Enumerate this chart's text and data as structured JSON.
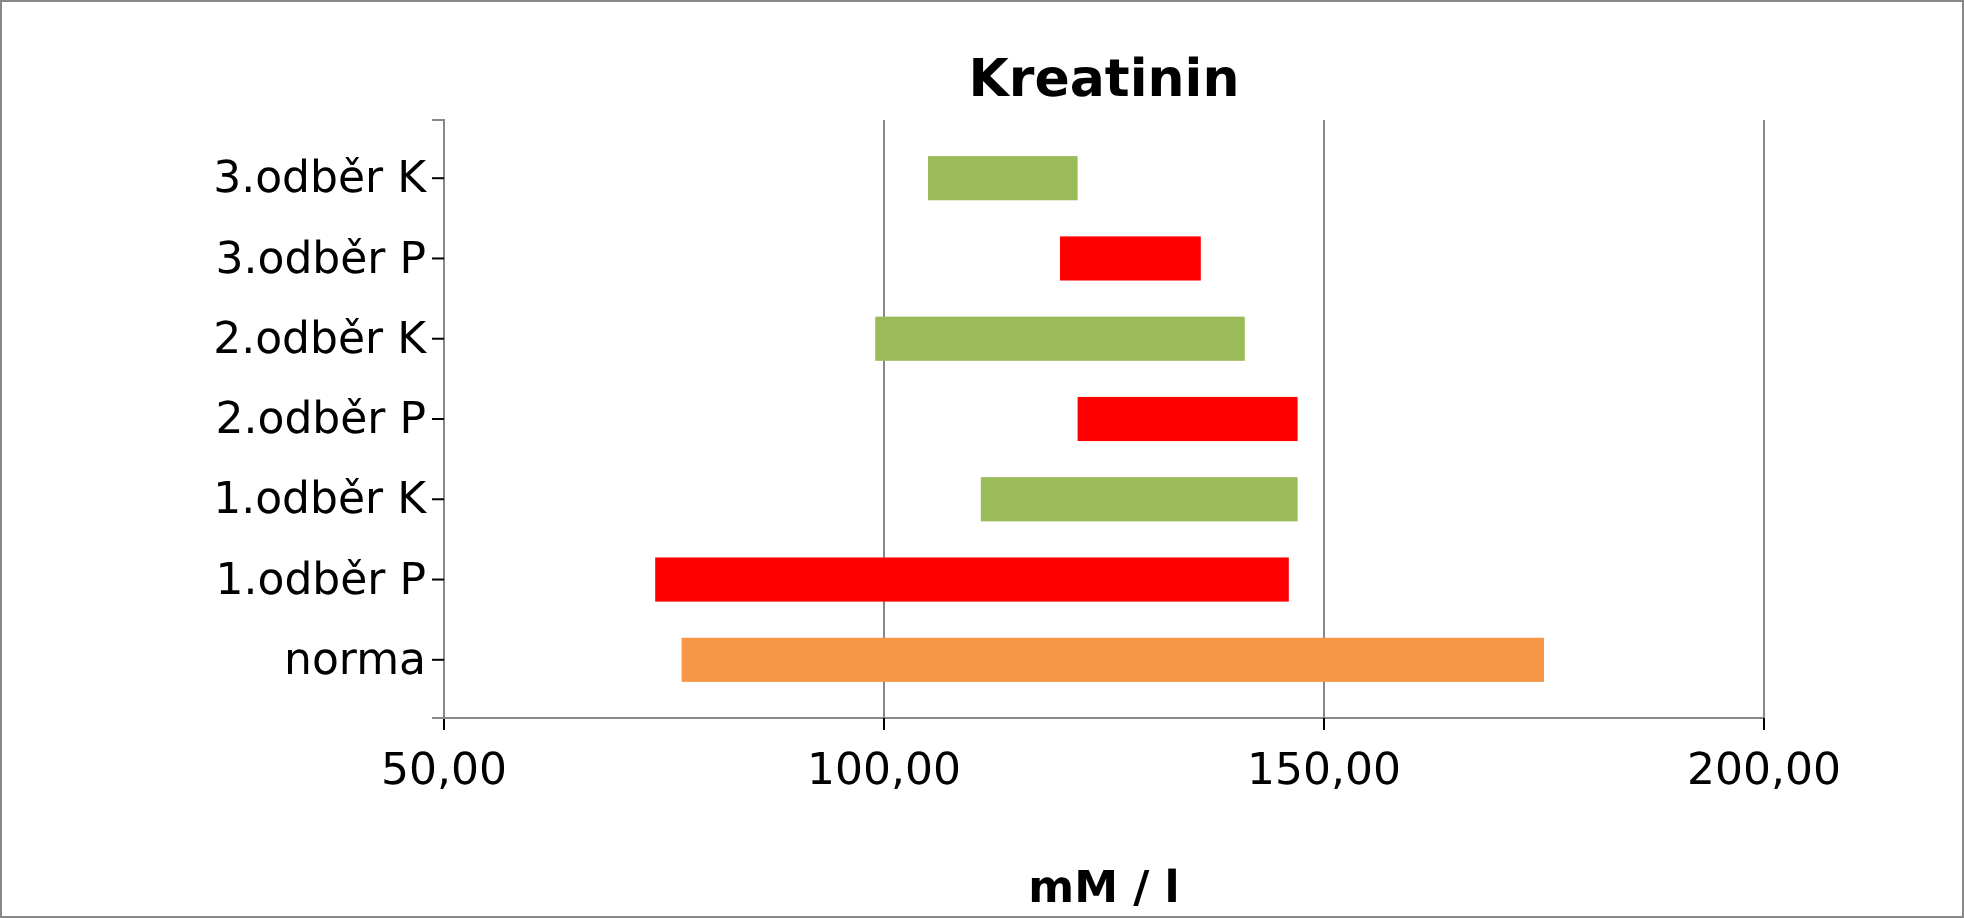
{
  "chart_data": {
    "type": "bar",
    "title": "Kreatinin",
    "xlabel": "mM / l",
    "orientation": "horizontal",
    "categories": [
      "3.odběr K",
      "3.odběr P",
      "2.odběr K",
      "2.odběr P",
      "1.odběr K",
      "1.odběr P",
      "norma"
    ],
    "base": [
      105,
      120,
      99,
      122,
      111,
      74,
      77
    ],
    "values": [
      17,
      16,
      42,
      25,
      36,
      72,
      98
    ],
    "colors": [
      "#9bbb59",
      "#ff0000",
      "#9bbb59",
      "#ff0000",
      "#9bbb59",
      "#ff0000",
      "#f79646"
    ],
    "xlim": [
      50,
      200
    ],
    "xticks": [
      {
        "value": 50,
        "label": "50,00"
      },
      {
        "value": 100,
        "label": "100,00"
      },
      {
        "value": 150,
        "label": "150,00"
      },
      {
        "value": 200,
        "label": "200,00"
      }
    ],
    "grid": "x"
  }
}
